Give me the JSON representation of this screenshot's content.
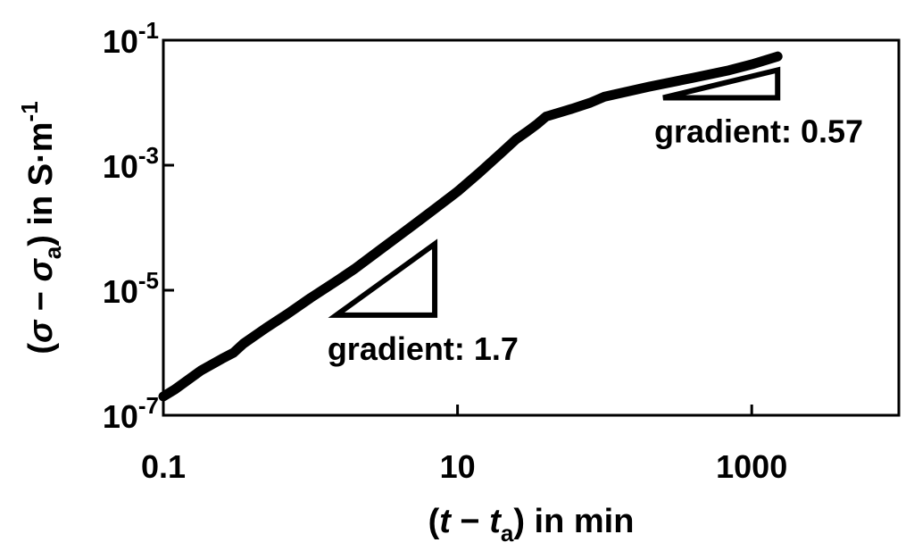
{
  "chart_data": {
    "type": "line",
    "x_scale": "log",
    "y_scale": "log",
    "xlim": [
      0.1,
      10000
    ],
    "ylim": [
      1e-07,
      0.1
    ],
    "x_ticks": [
      {
        "value": 0.1,
        "label": "0.1"
      },
      {
        "value": 10,
        "label": "10"
      },
      {
        "value": 1000,
        "label": "1000"
      }
    ],
    "y_ticks": [
      {
        "value": 1e-07,
        "base": "10",
        "exp": "-7"
      },
      {
        "value": 1e-05,
        "base": "10",
        "exp": "-5"
      },
      {
        "value": 0.001,
        "base": "10",
        "exp": "-3"
      },
      {
        "value": 0.1,
        "base": "10",
        "exp": "-1"
      }
    ],
    "xlabel": {
      "open": "(",
      "var": "t",
      "minus": " − ",
      "var2": "t",
      "sub": "a",
      "close": ")",
      "unit": " in min"
    },
    "ylabel": {
      "open": "(",
      "var": "σ",
      "minus": " − ",
      "var2": "σ",
      "sub": "a",
      "close": ")",
      "unit": " in S·m",
      "exp": "-1"
    },
    "series": [
      {
        "x": [
          0.1,
          0.12,
          0.18,
          0.25,
          0.3,
          0.35,
          0.5,
          0.7,
          1.0,
          1.5,
          2.0,
          3.0,
          5.0,
          7.0,
          10,
          14,
          20,
          25,
          30,
          35,
          40,
          60,
          80,
          100,
          150,
          200,
          400,
          700,
          1000,
          1500
        ],
        "y": [
          2e-07,
          2.6e-07,
          5.2e-07,
          8e-07,
          1e-06,
          1.4e-06,
          2.5e-06,
          4.2e-06,
          7.5e-06,
          1.4e-05,
          2.2e-05,
          4.5e-05,
          0.00011,
          0.0002,
          0.00038,
          0.00075,
          0.0016,
          0.0026,
          0.0035,
          0.0046,
          0.006,
          0.008,
          0.01,
          0.0125,
          0.0155,
          0.018,
          0.025,
          0.033,
          0.041,
          0.055
        ]
      }
    ],
    "annotations": [
      {
        "text": "gradient: 1.7",
        "slope": 1.7,
        "triangle_x": [
          1.5,
          7
        ],
        "triangle_y_base": 4e-06
      },
      {
        "text": "gradient: 0.57",
        "slope": 0.57,
        "triangle_x": [
          250,
          1500
        ],
        "triangle_y_base": 0.012
      }
    ],
    "grid": false,
    "legend": "none"
  }
}
